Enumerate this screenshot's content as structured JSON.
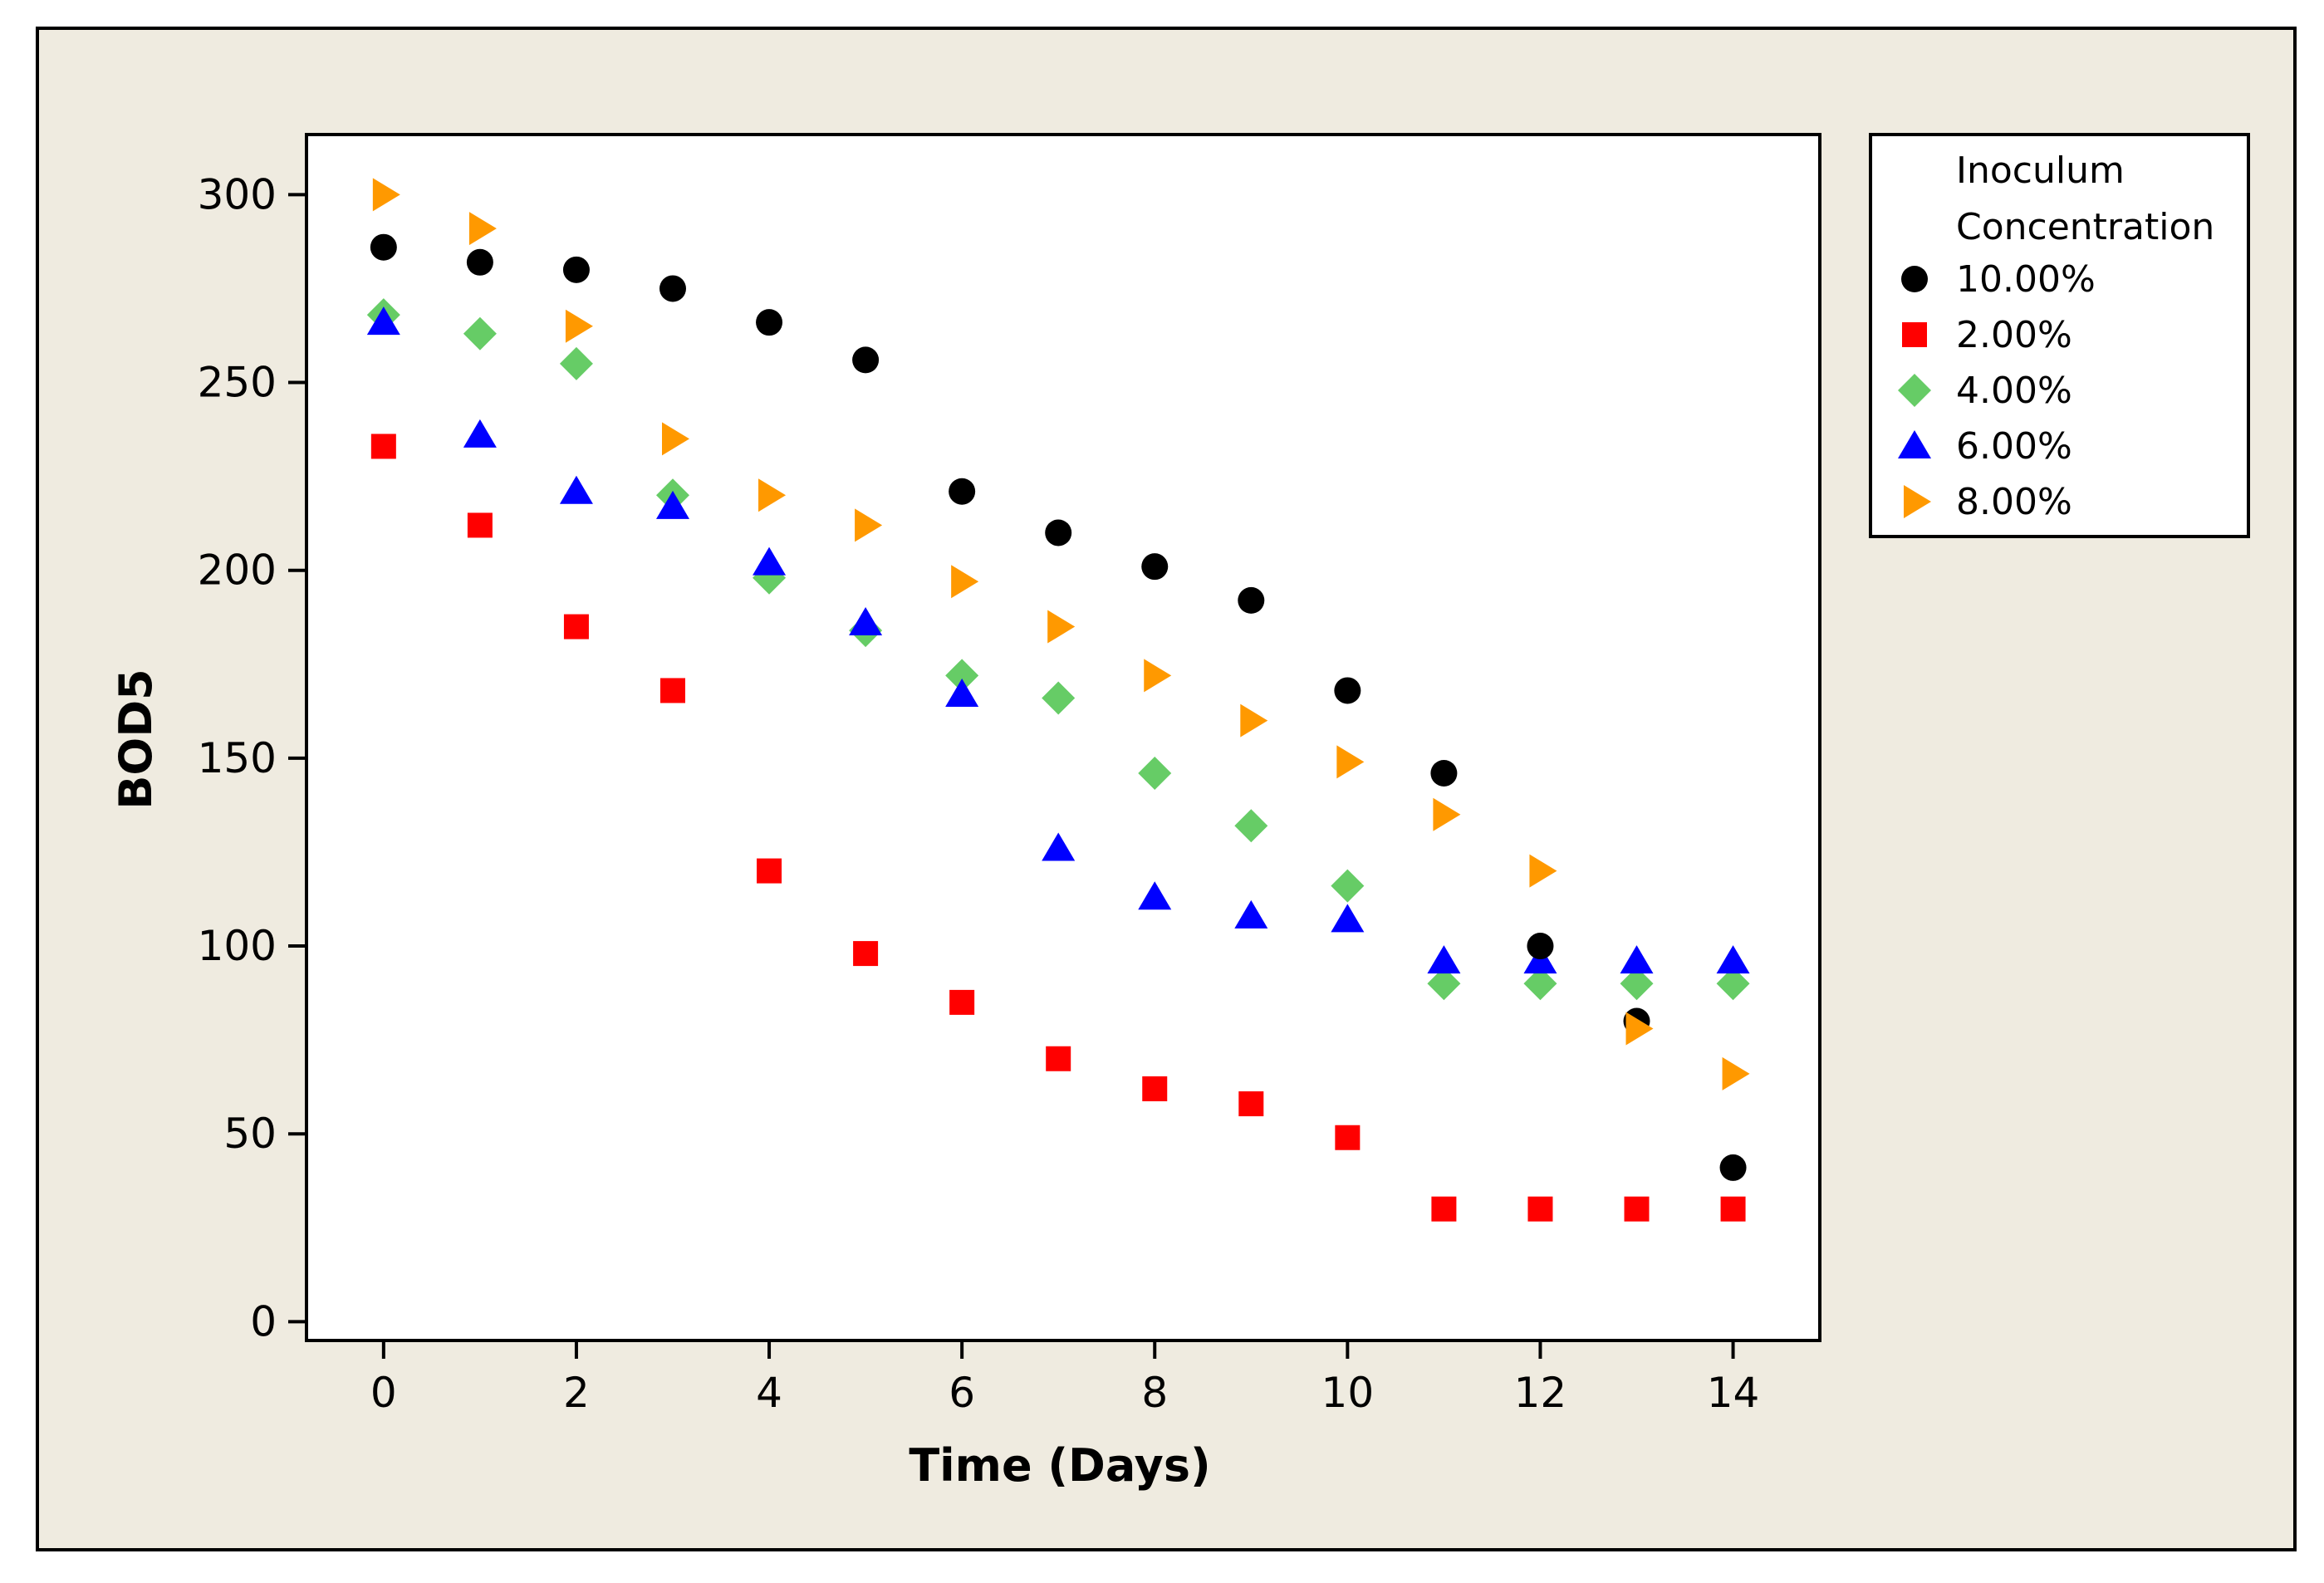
{
  "chart_data": {
    "type": "scatter",
    "title": "",
    "xlabel": "Time (Days)",
    "ylabel": "BOD5",
    "xlim": [
      -0.8,
      14.9
    ],
    "ylim": [
      -5,
      316
    ],
    "xticks": [
      0,
      2,
      4,
      6,
      8,
      10,
      12,
      14
    ],
    "yticks": [
      0,
      50,
      100,
      150,
      200,
      250,
      300
    ],
    "x": [
      0,
      1,
      2,
      3,
      4,
      5,
      6,
      7,
      8,
      9,
      10,
      11,
      12,
      13,
      14
    ],
    "legend_title_lines": [
      "Inoculum",
      "Concentration"
    ],
    "legend_position": "top-right outside",
    "series": [
      {
        "name": "10.00%",
        "marker": "circle",
        "color": "#000000",
        "values": [
          286,
          282,
          280,
          275,
          266,
          256,
          221,
          210,
          201,
          192,
          168,
          146,
          100,
          80,
          41
        ]
      },
      {
        "name": "2.00%",
        "marker": "square",
        "color": "#ff0000",
        "values": [
          233,
          212,
          185,
          168,
          120,
          98,
          85,
          70,
          62,
          58,
          49,
          30,
          30,
          30,
          30
        ]
      },
      {
        "name": "4.00%",
        "marker": "diamond",
        "color": "#66cc66",
        "values": [
          268,
          263,
          255,
          220,
          198,
          184,
          172,
          166,
          146,
          132,
          116,
          90,
          90,
          90,
          90
        ]
      },
      {
        "name": "6.00%",
        "marker": "triangle-up",
        "color": "#0000ff",
        "values": [
          266,
          236,
          221,
          217,
          202,
          186,
          167,
          126,
          113,
          108,
          107,
          96,
          96,
          96,
          96
        ]
      },
      {
        "name": "8.00%",
        "marker": "triangle-right",
        "color": "#ff9900",
        "values": [
          300,
          291,
          265,
          235,
          220,
          212,
          197,
          185,
          172,
          160,
          149,
          135,
          120,
          78,
          66
        ]
      }
    ]
  }
}
